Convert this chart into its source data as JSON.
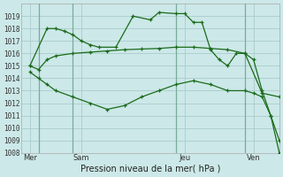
{
  "title": "Pression niveau de la mer( hPa )",
  "bg_color": "#cce8e8",
  "grid_color": "#aacccc",
  "line_color": "#1a6b1a",
  "ylim": [
    1008,
    1020
  ],
  "yticks": [
    1008,
    1009,
    1010,
    1011,
    1012,
    1013,
    1014,
    1015,
    1016,
    1017,
    1018,
    1019
  ],
  "xlim": [
    0,
    15
  ],
  "xtick_labels": [
    "Mer",
    "Sam",
    "Jeu",
    "Ven"
  ],
  "xtick_positions": [
    0.5,
    3.5,
    9.5,
    13.5
  ],
  "vlines_x": [
    1,
    3,
    9,
    13
  ],
  "series1_x": [
    0.5,
    1.5,
    2.0,
    2.5,
    3.0,
    3.5,
    4.0,
    4.5,
    5.5,
    6.5,
    7.5,
    8.0,
    9.0,
    9.5,
    10.0,
    10.5,
    11.0,
    11.5,
    12.0,
    12.5,
    13.0,
    13.5,
    14.0,
    14.5,
    15.0
  ],
  "series1_y": [
    1015.0,
    1018.0,
    1018.0,
    1017.8,
    1017.5,
    1017.0,
    1016.7,
    1016.5,
    1016.5,
    1019.0,
    1018.7,
    1019.3,
    1019.2,
    1019.2,
    1018.5,
    1018.5,
    1016.3,
    1015.5,
    1015.0,
    1016.0,
    1016.0,
    1015.5,
    1013.0,
    1011.0,
    1008.0
  ],
  "series2_x": [
    0.5,
    1.0,
    1.5,
    2.0,
    3.0,
    4.0,
    5.0,
    6.0,
    7.0,
    8.0,
    9.0,
    10.0,
    11.0,
    12.0,
    13.0,
    14.0,
    15.0
  ],
  "series2_y": [
    1015.0,
    1014.7,
    1015.5,
    1015.8,
    1016.0,
    1016.1,
    1016.2,
    1016.3,
    1016.35,
    1016.4,
    1016.5,
    1016.5,
    1016.4,
    1016.3,
    1016.0,
    1012.8,
    1012.5
  ],
  "series3_x": [
    0.5,
    1.0,
    1.5,
    2.0,
    3.0,
    4.0,
    5.0,
    6.0,
    7.0,
    8.0,
    9.0,
    10.0,
    11.0,
    12.0,
    13.0,
    13.5,
    14.0,
    14.5,
    15.0
  ],
  "series3_y": [
    1014.5,
    1014.0,
    1013.5,
    1013.0,
    1012.5,
    1012.0,
    1011.5,
    1011.8,
    1012.5,
    1013.0,
    1013.5,
    1013.8,
    1013.5,
    1013.0,
    1013.0,
    1012.8,
    1012.5,
    1011.0,
    1009.0
  ]
}
